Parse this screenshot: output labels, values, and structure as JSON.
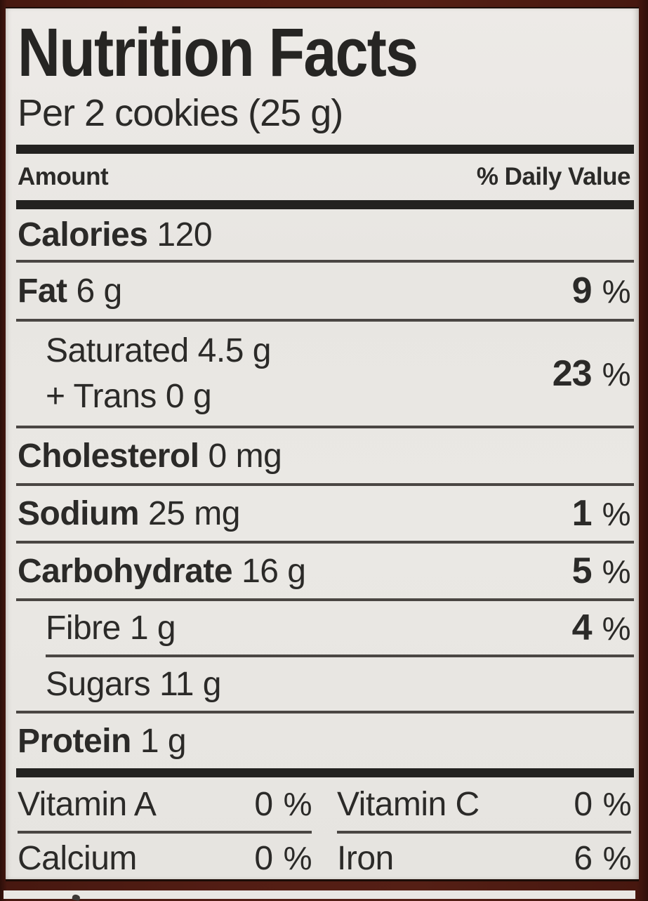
{
  "title": "Nutrition Facts",
  "serving": "Per 2 cookies (25 g)",
  "header": {
    "amount_label": "Amount",
    "daily_value_label": "% Daily Value"
  },
  "percent": "%",
  "rows": [
    {
      "name": "Calories",
      "amount": "120"
    },
    {
      "name": "Fat",
      "amount": "6 g",
      "dv": "9"
    },
    {
      "name": "Saturated",
      "amount": "4.5 g",
      "name2": "+ Trans",
      "amount2": "0 g",
      "dv": "23"
    },
    {
      "name": "Cholesterol",
      "amount": "0 mg"
    },
    {
      "name": "Sodium",
      "amount": "25 mg",
      "dv": "1"
    },
    {
      "name": "Carbohydrate",
      "amount": "16 g",
      "dv": "5"
    },
    {
      "name": "Fibre",
      "amount": "1 g",
      "dv": "4"
    },
    {
      "name": "Sugars",
      "amount": "11 g"
    },
    {
      "name": "Protein",
      "amount": "1 g"
    }
  ],
  "micronutrients": [
    {
      "name": "Vitamin A",
      "value": "0"
    },
    {
      "name": "Vitamin C",
      "value": "0"
    },
    {
      "name": "Calcium",
      "value": "0"
    },
    {
      "name": "Iron",
      "value": "6"
    }
  ],
  "colors": {
    "label_background": "#e9e6e2",
    "text": "#2b2a28",
    "thin_rule": "#4a4643",
    "section_bar": "#232220",
    "surround_maroon": "#4f1c13"
  }
}
